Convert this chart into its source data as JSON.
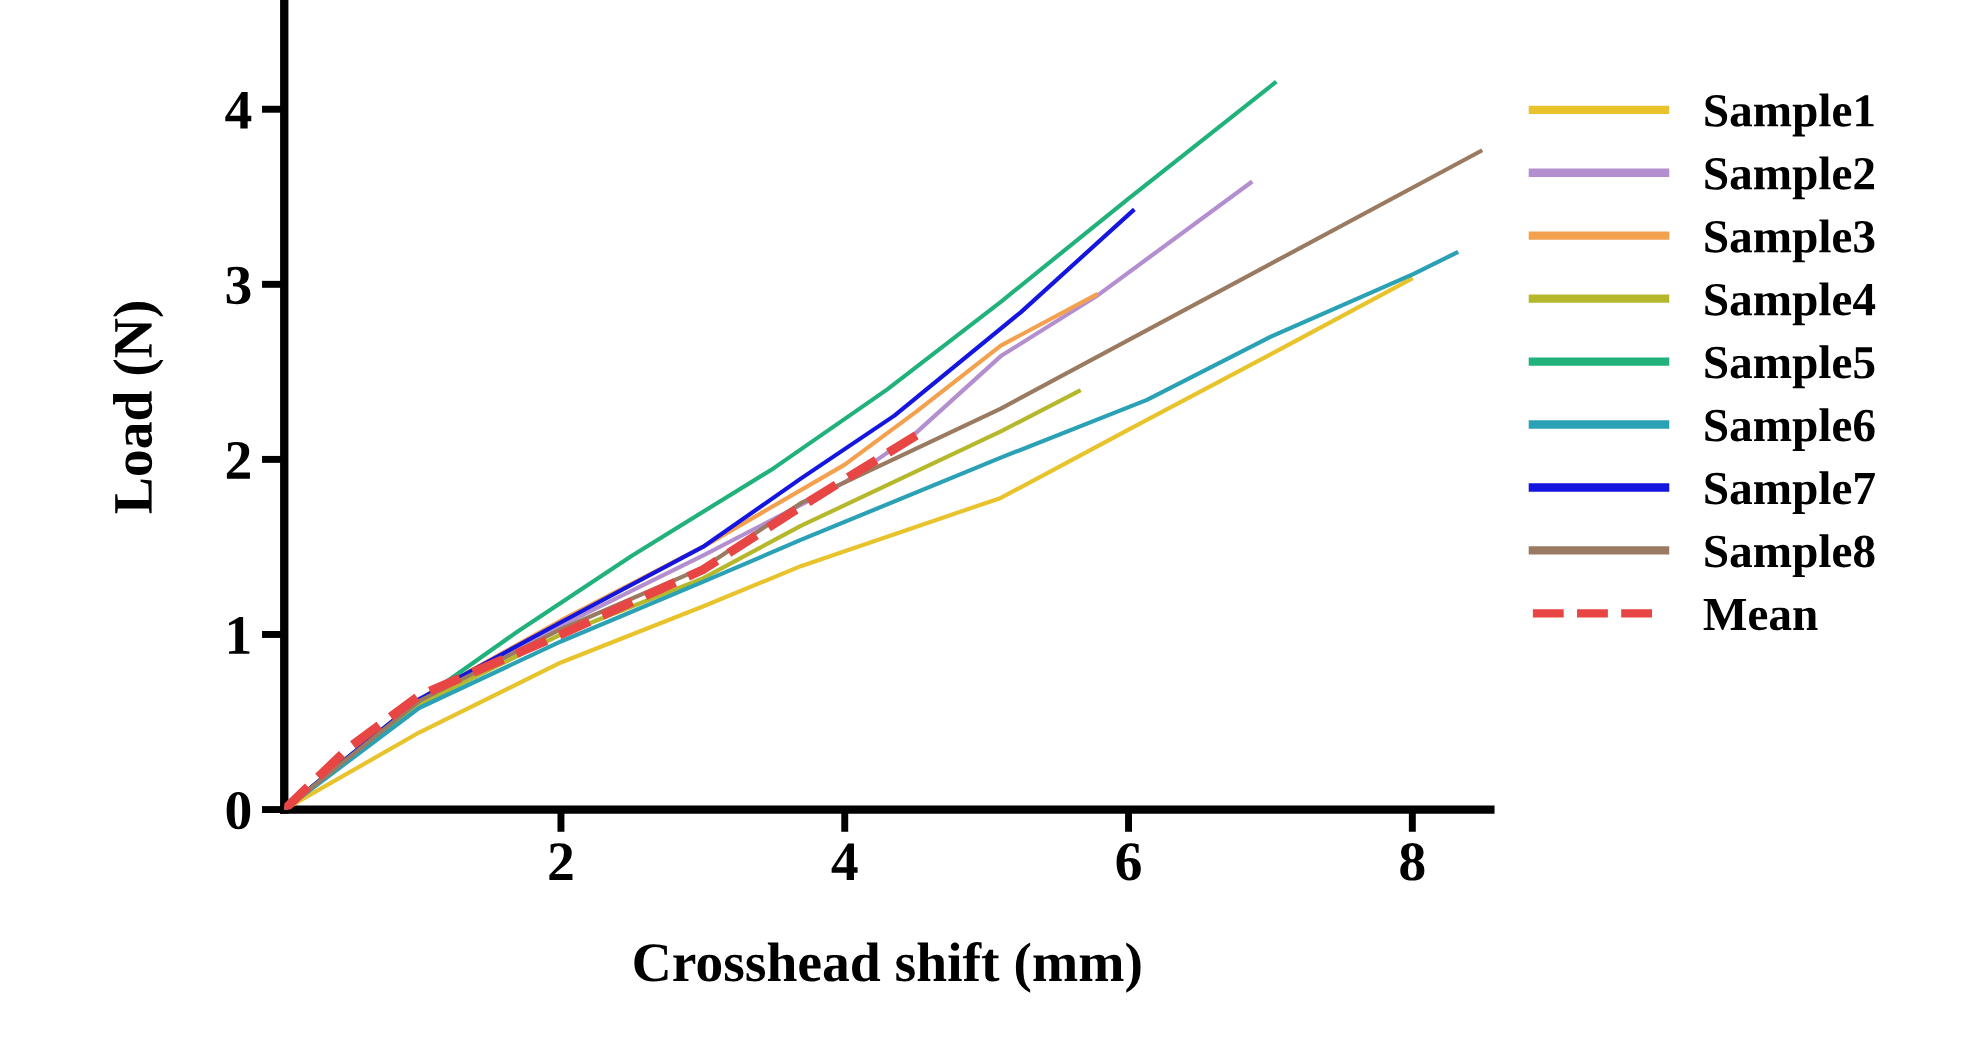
{
  "chart_data": {
    "type": "line",
    "xlabel": "Crosshead shift (mm)",
    "ylabel": "Load (N)",
    "xlim": [
      0.05,
      8.55
    ],
    "ylim": [
      0,
      4.6
    ],
    "xticks": [
      2,
      4,
      6,
      8
    ],
    "yticks": [
      0,
      1,
      2,
      3,
      4
    ],
    "grid": false,
    "legend": "right",
    "marker": "none",
    "series": [
      {
        "name": "Sample1",
        "color": "#e8c32c",
        "x": [
          0.05,
          1,
          2,
          3,
          3.69,
          5.1,
          6,
          7.07,
          7.99
        ],
        "values": [
          0,
          0.44,
          0.84,
          1.16,
          1.39,
          1.78,
          2.17,
          2.63,
          3.03
        ]
      },
      {
        "name": "Sample2",
        "color": "#b48fd0",
        "x": [
          0.05,
          1,
          2,
          3,
          4,
          4.5,
          5.1,
          5.77,
          6.86
        ],
        "values": [
          0,
          0.62,
          1.05,
          1.45,
          1.87,
          2.15,
          2.59,
          2.93,
          3.58
        ]
      },
      {
        "name": "Sample3",
        "color": "#f4a14f",
        "x": [
          0.05,
          1,
          2,
          3,
          4,
          4.5,
          5.1,
          5.77
        ],
        "values": [
          0,
          0.63,
          1.08,
          1.5,
          1.97,
          2.27,
          2.65,
          2.94
        ]
      },
      {
        "name": "Sample4",
        "color": "#b6b82c",
        "x": [
          0.05,
          1,
          2,
          3,
          3.69,
          5.1,
          5.65
        ],
        "values": [
          0,
          0.6,
          1.0,
          1.32,
          1.62,
          2.16,
          2.39
        ]
      },
      {
        "name": "Sample5",
        "color": "#21b27b",
        "x": [
          0.05,
          0.5,
          1,
          1.7,
          2.5,
          3.5,
          4.3,
          5.1,
          6,
          7.03
        ],
        "values": [
          0,
          0.3,
          0.62,
          1.02,
          1.45,
          1.95,
          2.4,
          2.9,
          3.49,
          4.15
        ]
      },
      {
        "name": "Sample6",
        "color": "#2aa1b5",
        "x": [
          0.05,
          1,
          2,
          3,
          3.69,
          5.1,
          6.13,
          7,
          8.01,
          8.31
        ],
        "values": [
          0,
          0.58,
          0.96,
          1.3,
          1.54,
          2.01,
          2.34,
          2.7,
          3.06,
          3.18
        ]
      },
      {
        "name": "Sample7",
        "color": "#1515e0",
        "x": [
          0.05,
          0.5,
          1,
          2,
          3,
          3.69,
          4.35,
          5.24,
          6.03
        ],
        "values": [
          0,
          0.3,
          0.63,
          1.07,
          1.5,
          1.89,
          2.25,
          2.84,
          3.42
        ]
      },
      {
        "name": "Sample8",
        "color": "#9a7b62",
        "x": [
          0.05,
          1,
          2,
          3,
          3.69,
          5.1,
          8.48
        ],
        "values": [
          0,
          0.62,
          1.03,
          1.38,
          1.75,
          2.29,
          3.76
        ]
      },
      {
        "name": "Mean",
        "color": "#e84545",
        "line_style": "dashed",
        "x": [
          0.05,
          0.5,
          1,
          2,
          3,
          3.69,
          4.51
        ],
        "values": [
          0,
          0.35,
          0.65,
          1.0,
          1.37,
          1.73,
          2.14
        ]
      }
    ]
  }
}
